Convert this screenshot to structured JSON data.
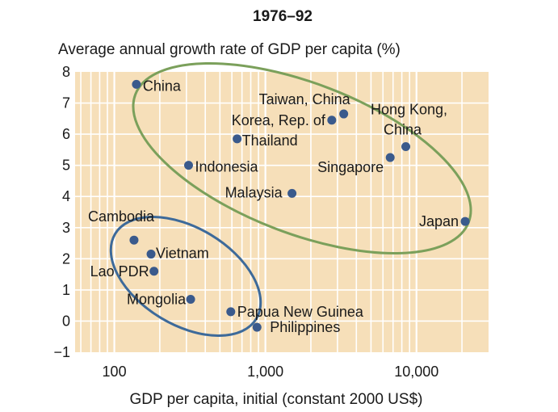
{
  "chart_data": {
    "type": "scatter",
    "title": "1976–92",
    "ylabel": "Average annual growth rate of GDP per capita (%)",
    "xlabel": "GDP per capita, initial (constant 2000 US$)",
    "x_scale": "log",
    "xlim": [
      55,
      30000
    ],
    "ylim": [
      -1,
      8
    ],
    "x_ticks": [
      {
        "value": 100,
        "label": "100"
      },
      {
        "value": 1000,
        "label": "1,000"
      },
      {
        "value": 10000,
        "label": "10,000"
      }
    ],
    "y_ticks": [
      {
        "value": 8,
        "label": "8"
      },
      {
        "value": 7,
        "label": "7"
      },
      {
        "value": 6,
        "label": "6"
      },
      {
        "value": 5,
        "label": "5"
      },
      {
        "value": 4,
        "label": "4"
      },
      {
        "value": 3,
        "label": "3"
      },
      {
        "value": 2,
        "label": "2"
      },
      {
        "value": 1,
        "label": "1"
      },
      {
        "value": 0,
        "label": "0"
      },
      {
        "value": -1,
        "label": "−1"
      }
    ],
    "grid": true,
    "colors": {
      "background": "#f6dfb9",
      "grid": "#ffffff",
      "point": "#3a5a8c",
      "high_growth_ellipse": "#7ba05b",
      "low_growth_ellipse": "#3d6a9a"
    },
    "points": [
      {
        "label": "China",
        "x": 140,
        "y": 7.6,
        "anchor": "start",
        "dx": 8,
        "dy": 8
      },
      {
        "label": "Taiwan, China",
        "x": 3300,
        "y": 6.65,
        "anchor": "end",
        "dx": 8,
        "dy": -12
      },
      {
        "label": "Korea, Rep. of",
        "x": 2750,
        "y": 6.45,
        "anchor": "end",
        "dx": -8,
        "dy": 6
      },
      {
        "label": "Hong Kong,",
        "x": 8500,
        "y": 5.6,
        "anchor": "middle",
        "dx": 4,
        "dy": -40
      },
      {
        "label": "China",
        "x": 8500,
        "y": 5.6,
        "anchor": "middle",
        "dx": -4,
        "dy": -15
      },
      {
        "label": "Thailand",
        "x": 650,
        "y": 5.85,
        "anchor": "start",
        "dx": 6,
        "dy": 8
      },
      {
        "label": "Indonesia",
        "x": 310,
        "y": 5.0,
        "anchor": "start",
        "dx": 8,
        "dy": 8
      },
      {
        "label": "Singapore",
        "x": 6700,
        "y": 5.25,
        "anchor": "end",
        "dx": -8,
        "dy": 18
      },
      {
        "label": "Malaysia",
        "x": 1500,
        "y": 4.1,
        "anchor": "end",
        "dx": -12,
        "dy": 5
      },
      {
        "label": "Japan",
        "x": 21000,
        "y": 3.2,
        "anchor": "end",
        "dx": -8,
        "dy": 6
      },
      {
        "label": "Cambodia",
        "x": 135,
        "y": 2.6,
        "anchor": "start",
        "dx": -57,
        "dy": -23
      },
      {
        "label": "Vietnam",
        "x": 175,
        "y": 2.15,
        "anchor": "start",
        "dx": 6,
        "dy": 5
      },
      {
        "label": "Lao PDR",
        "x": 183,
        "y": 1.6,
        "anchor": "end",
        "dx": -6,
        "dy": 6
      },
      {
        "label": "Mongolia",
        "x": 320,
        "y": 0.7,
        "anchor": "end",
        "dx": -6,
        "dy": 6
      },
      {
        "label": "Papua New Guinea",
        "x": 590,
        "y": 0.3,
        "anchor": "start",
        "dx": 8,
        "dy": 6
      },
      {
        "label": "Philippines",
        "x": 880,
        "y": -0.2,
        "anchor": "start",
        "dx": 16,
        "dy": 6
      }
    ]
  }
}
